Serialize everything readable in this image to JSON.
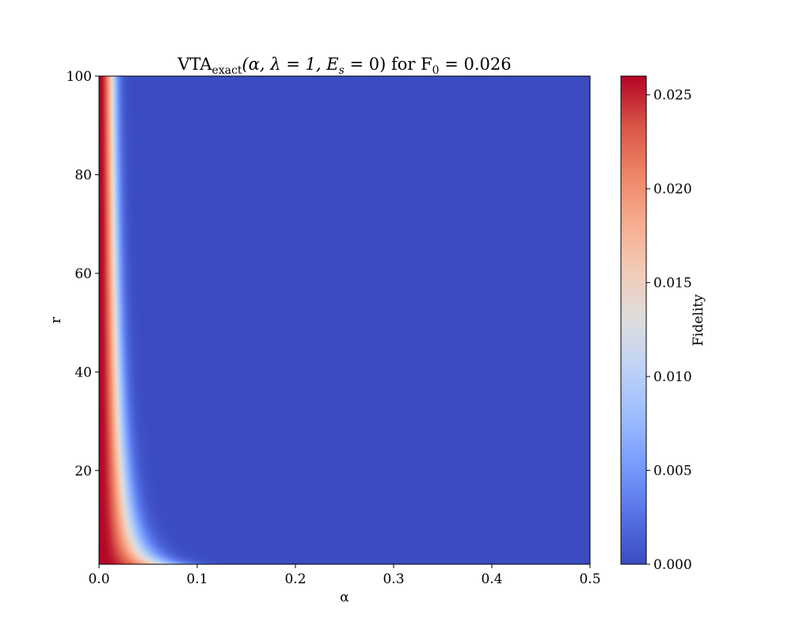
{
  "chart_data": {
    "type": "heatmap",
    "title": {
      "prefix": "VTA",
      "subscript": "exact",
      "args": "(α, λ = 1, E",
      "args_sub": "s",
      "args_end": " = 0) for F",
      "f_sub": "0",
      "f_value": " = 0.026"
    },
    "xlabel": "α",
    "ylabel": "r",
    "xlim": [
      0.0,
      0.5
    ],
    "ylim": [
      1,
      100
    ],
    "xticks": [
      "0.0",
      "0.1",
      "0.2",
      "0.3",
      "0.4",
      "0.5"
    ],
    "yticks": [
      "20",
      "40",
      "60",
      "80",
      "100"
    ],
    "x_tick_values": [
      0.0,
      0.1,
      0.2,
      0.3,
      0.4,
      0.5
    ],
    "y_tick_values": [
      20,
      40,
      60,
      80,
      100
    ],
    "colormap": "coolwarm",
    "colorbar": {
      "label": "Fidelity",
      "range": [
        0.0,
        0.026
      ],
      "ticks": [
        "0.000",
        "0.005",
        "0.010",
        "0.015",
        "0.020",
        "0.025"
      ],
      "tick_values": [
        0.0,
        0.005,
        0.01,
        0.015,
        0.02,
        0.025
      ]
    },
    "surface": {
      "F0": 0.026,
      "description_values": [
        {
          "r": 1,
          "alpha_half_width": 0.065
        },
        {
          "r": 5,
          "alpha_half_width": 0.03
        },
        {
          "r": 20,
          "alpha_half_width": 0.016
        },
        {
          "r": 60,
          "alpha_half_width": 0.009
        },
        {
          "r": 100,
          "alpha_half_width": 0.007
        }
      ]
    }
  }
}
